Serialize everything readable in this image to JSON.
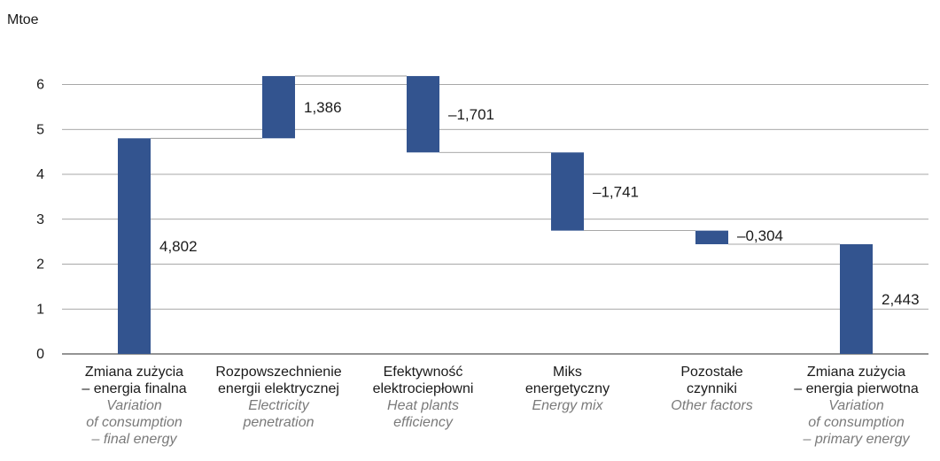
{
  "chart_data": {
    "type": "bar",
    "subtype": "waterfall",
    "y_unit": "Mtoe",
    "ylim": [
      0,
      8
    ],
    "yticks": [
      "0",
      "1",
      "2",
      "3",
      "4",
      "5",
      "6",
      "8"
    ],
    "grid": true,
    "bar_color": "#33548f",
    "categories": [
      {
        "pl": [
          "Zmiana zużycia",
          "– energia finalna"
        ],
        "en": [
          "Variation",
          "of consumption",
          "– final energy"
        ],
        "start": 0,
        "end": 4.802,
        "label": "4,802"
      },
      {
        "pl": [
          "Rozpowszechnienie",
          "energii elektrycznej"
        ],
        "en": [
          "Electricity",
          "penetration"
        ],
        "start": 4.802,
        "end": 6.188,
        "label": "1,386"
      },
      {
        "pl": [
          "Efektywność",
          "elektrociepłowni"
        ],
        "en": [
          "Heat plants",
          "efficiency"
        ],
        "start": 6.188,
        "end": 4.487,
        "label": "–1,701"
      },
      {
        "pl": [
          "Miks",
          "energetyczny"
        ],
        "en": [
          "Energy mix"
        ],
        "start": 4.487,
        "end": 2.746,
        "label": "–1,741"
      },
      {
        "pl": [
          "Pozostałe",
          "czynniki"
        ],
        "en": [
          "Other factors"
        ],
        "start": 2.746,
        "end": 2.443,
        "label": "–0,304"
      },
      {
        "pl": [
          "Zmiana zużycia",
          "– energia pierwotna"
        ],
        "en": [
          "Variation",
          "of consumption",
          "– primary energy"
        ],
        "start": 0,
        "end": 2.443,
        "label": "2,443"
      }
    ]
  }
}
